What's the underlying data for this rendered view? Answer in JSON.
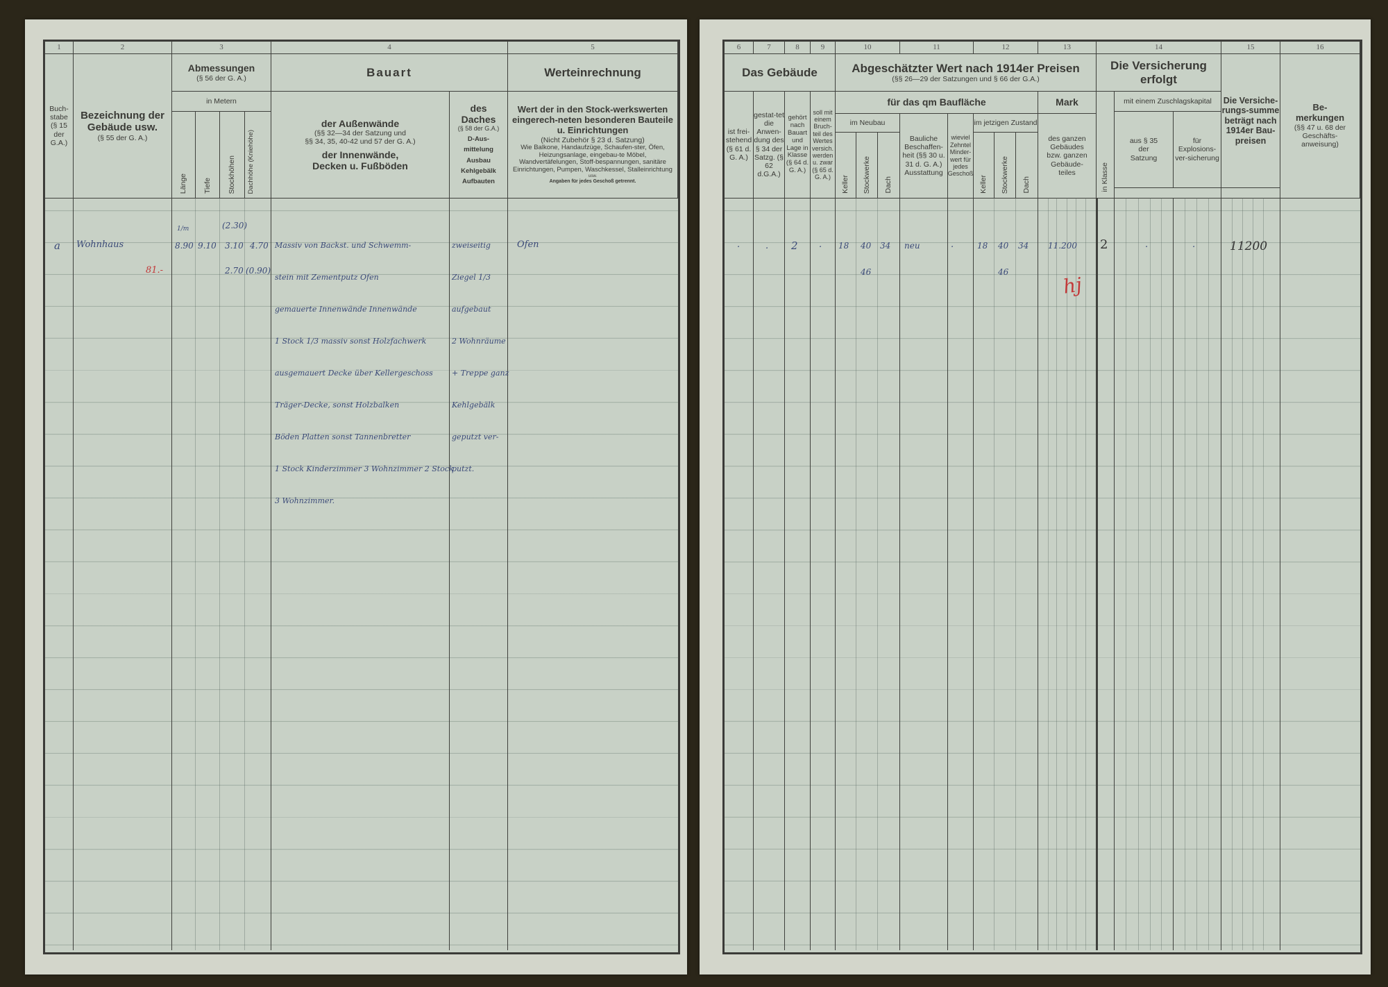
{
  "left": {
    "col_numbers": [
      "1",
      "2",
      "3",
      "4",
      "5"
    ],
    "buchstabe": "Buch-stabe (§ 15 der G.A.)",
    "bezeichnung": {
      "title": "Bezeichnung der Gebäude usw.",
      "ref": "(§ 55 der G. A.)"
    },
    "abmessungen": {
      "title": "Abmessungen",
      "ref": "(§ 56 der G. A.)",
      "unit": "in Metern",
      "sub": [
        "Länge",
        "Tiefe",
        "Stockhöhen",
        "Dachhöhe (Kniehöhe)"
      ]
    },
    "bauart": {
      "title": "Bauart",
      "aussen": "der Außenwände",
      "aussen_ref1": "(§§ 32—34 der Satzung und",
      "aussen_ref2": "§§ 34, 35, 40-42 und 57 der G. A.)",
      "innen": "der Innenwände, Decken u. Fußböden",
      "dach_title": "des Daches",
      "dach_ref": "(§ 58 der G.A.)",
      "dach_items": "D-Aus-mittelung Ausbau Kehlgebälk Aufbauten"
    },
    "werteinrechnung": {
      "title": "Werteinrechnung",
      "sub": "Wert der in den Stock-werkswerten eingerech-neten besonderen Bauteile u. Einrichtungen",
      "ref": "(Nicht Zubehör § 23 d. Satzung)",
      "examples": "Wie Balkone, Handaufzüge, Schaufen-ster, Öfen, Heizungsanlage, eingebau-te Möbel, Wandvertäfelungen, Stoff-bespannungen, sanitäre Einrichtungen, Pumpen, Waschkessel, Stalleinrichtung",
      "usw": "usw.",
      "note": "Angaben für jedes Geschoß getrennt."
    }
  },
  "right": {
    "col_numbers": [
      "6",
      "7",
      "8",
      "9",
      "10",
      "11",
      "12",
      "13",
      "14",
      "15",
      "16"
    ],
    "gebaeude": "Das Gebäude",
    "c6": "ist frei-stehend (§ 61 d. G. A.)",
    "c7": "gestat-tet die Anwen-dung des § 34 der Satzg. (§ 62 d.G.A.)",
    "c8": "gehört nach Bauart und Lage in Klasse (§ 64 d. G. A.)",
    "c9": "soll mit einem Bruch-teil des Wertes versich. werden u. zwar (§ 65 d. G. A.)",
    "wert": {
      "title": "Abgeschätzter Wert nach 1914er Preisen",
      "ref": "(§§ 26—29 der Satzungen und § 66 der G.A.)"
    },
    "qm": "für das qm Baufläche",
    "mark": "Mark",
    "neubau": "im Neubau",
    "jetzig": "im jetzigen Zustand",
    "sub": [
      "Keller",
      "Stockwerke",
      "Dach"
    ],
    "bauliche": "Bauliche Beschaffen-heit (§§ 30 u. 31 d. G. A.) Ausstattung",
    "zehntel": "wieviel Zehntel Minder-wert für jedes Geschoß",
    "ganzen": "des ganzen Gebäudes bzw. ganzen Gebäude-teiles",
    "versicherung": "Die Versicherung erfolgt",
    "klasse": "in Klasse",
    "zuschlag": "mit einem Zuschlagskapital",
    "aus35": "aus § 35 der Satzung",
    "explosion": "für Explosions-ver-sicherung",
    "summe": "Die Versiche-rungs-summe beträgt nach 1914er Bau-preisen",
    "bemerkungen": {
      "title": "Be-merkungen",
      "ref": "(§§ 47 u. 68 der Geschäfts-anweisung)"
    }
  },
  "entry": {
    "buchstabe": "a",
    "bezeichnung": "Wohnhaus",
    "red_mark": "81.-",
    "laenge_unit": "1/m",
    "laenge": "8.90",
    "tiefe": "9.10",
    "stock_top": "(2.30)",
    "stock": [
      "3.10",
      "2.70"
    ],
    "dach": [
      "4.70",
      "(0.90)"
    ],
    "bauart_lines": [
      "Massiv von Backst. und Schwemm-",
      "stein mit Zementputz Ofen",
      "gemauerte Innenwände Innenwände",
      "1 Stock 1/3 massiv sonst Holzfachwerk",
      "ausgemauert Decke über Kellergeschoss",
      "Träger-Decke, sonst Holzbalken",
      "Böden Platten sonst Tannenbretter",
      "1 Stock Kinderzimmer 3 Wohnzimmer 2 Stock",
      "3 Wohnzimmer."
    ],
    "dach_lines": [
      "zweiseitig",
      "Ziegel 1/3",
      "aufgebaut",
      "2 Wohnräume",
      "+ Treppe ganz",
      "Kehlgebälk",
      "geputzt ver-",
      "putzt."
    ],
    "wert_text": "Ofen",
    "c6": ".",
    "c7": ".",
    "c8": "2",
    "c9": ".",
    "neubau": [
      "18",
      "40",
      "34"
    ],
    "neubau_extra": "46",
    "bauliche": "neu",
    "zehntel": ".",
    "jetzig": [
      "18",
      "40",
      "34"
    ],
    "jetzig_extra": "46",
    "mark": "11.200",
    "initials": "hj",
    "klasse": "2",
    "aus35": ".",
    "explosion": ".",
    "summe": "11200"
  }
}
